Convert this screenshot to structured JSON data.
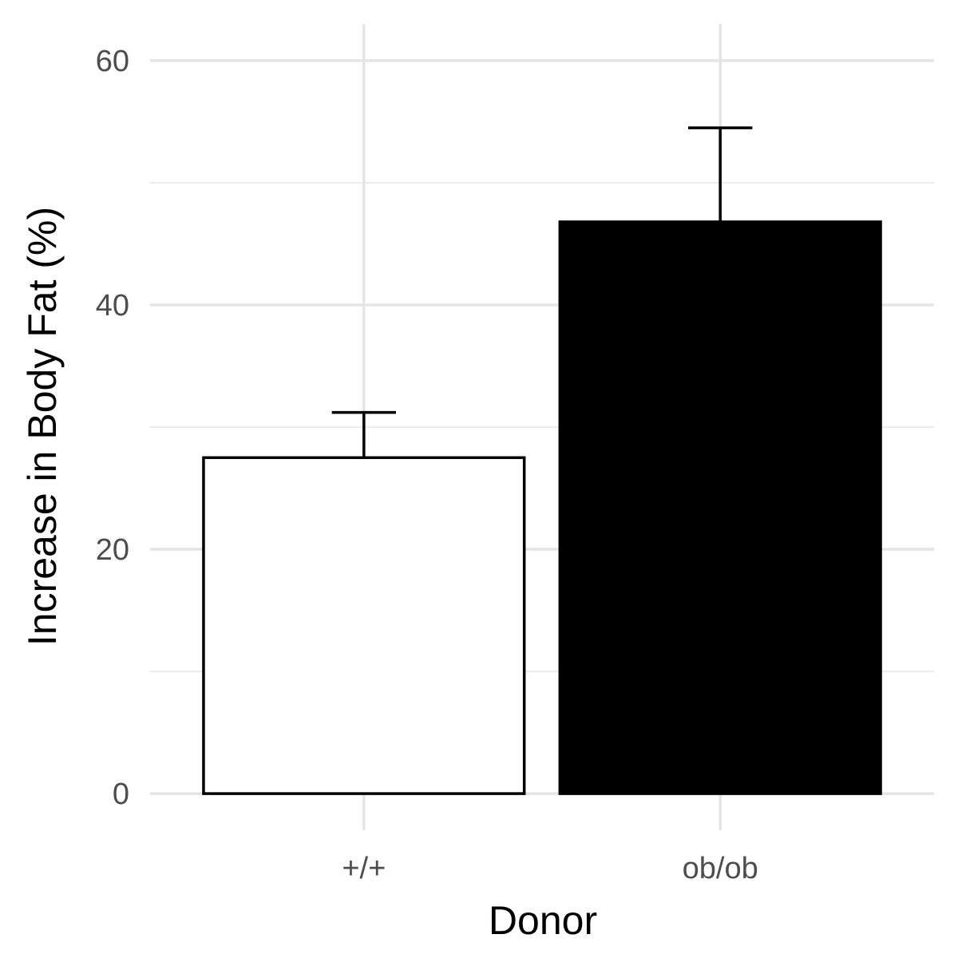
{
  "chart_data": {
    "type": "bar",
    "title": "",
    "xlabel": "Donor",
    "ylabel": "Increase in Body Fat (%)",
    "categories": [
      "+/+",
      "ob/ob"
    ],
    "values": [
      27.5,
      46.8
    ],
    "error_upper": [
      31.2,
      54.5
    ],
    "bar_fill_colors": [
      "#ffffff",
      "#000000"
    ],
    "bar_edge_color": "#000000",
    "ylim": [
      -3,
      63
    ],
    "y_ticks": [
      0,
      20,
      40,
      60
    ],
    "y_tick_labels": [
      "0",
      "20",
      "40",
      "60"
    ],
    "y_minor_ticks": [
      10,
      30,
      50
    ],
    "grid": true,
    "legend": "none"
  }
}
